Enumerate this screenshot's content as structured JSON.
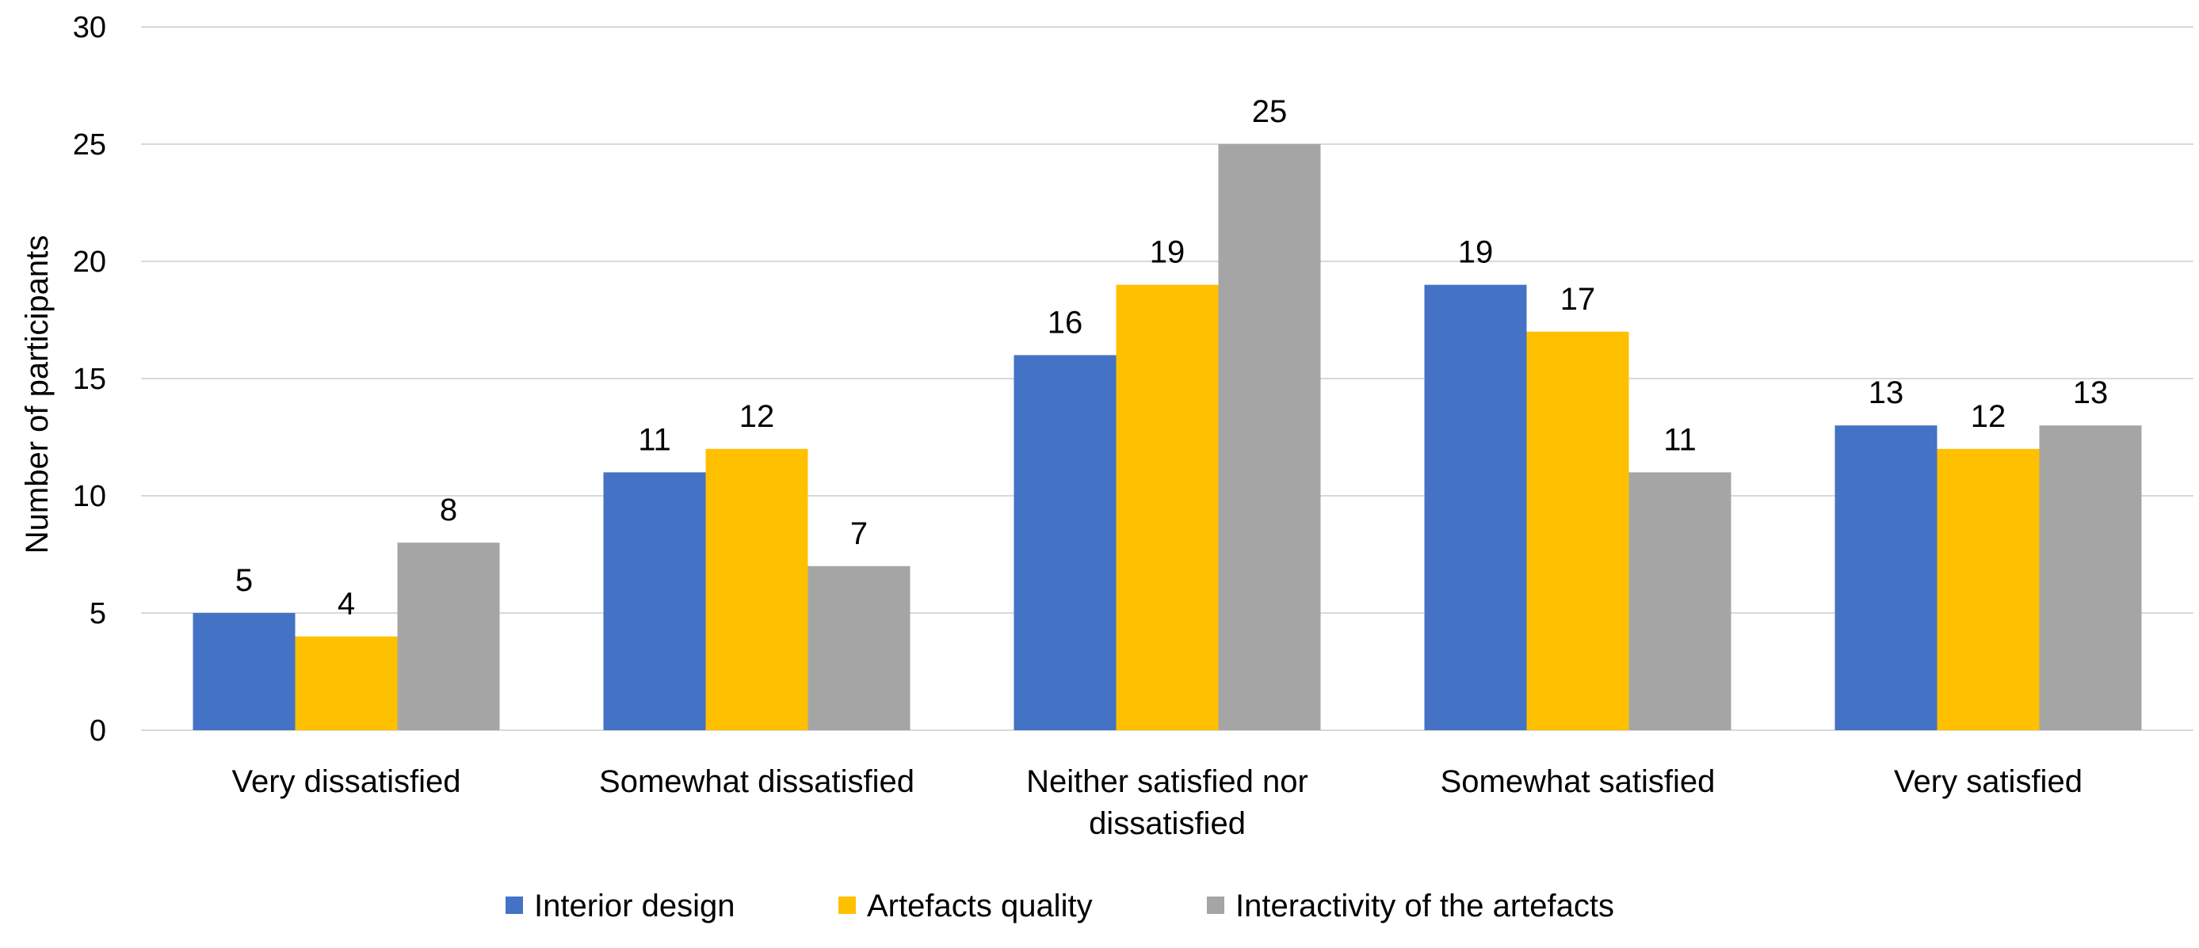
{
  "chart_data": {
    "type": "bar",
    "title": "",
    "xlabel": "",
    "ylabel": "Number of participants",
    "ylim": [
      0,
      30
    ],
    "yticks": [
      0,
      5,
      10,
      15,
      20,
      25,
      30
    ],
    "grid": true,
    "legend_position": "bottom",
    "categories": [
      [
        "Very dissatisfied"
      ],
      [
        "Somewhat dissatisfied"
      ],
      [
        "Neither satisfied nor",
        "dissatisfied"
      ],
      [
        "Somewhat satisfied"
      ],
      [
        "Very satisfied"
      ]
    ],
    "series": [
      {
        "name": "Interior design",
        "color": "#4472c4",
        "values": [
          5,
          11,
          16,
          19,
          13
        ]
      },
      {
        "name": "Artefacts quality",
        "color": "#ffc000",
        "values": [
          4,
          12,
          19,
          17,
          12
        ]
      },
      {
        "name": "Interactivity of the artefacts",
        "color": "#a5a5a5",
        "values": [
          8,
          7,
          25,
          11,
          13
        ]
      }
    ]
  }
}
